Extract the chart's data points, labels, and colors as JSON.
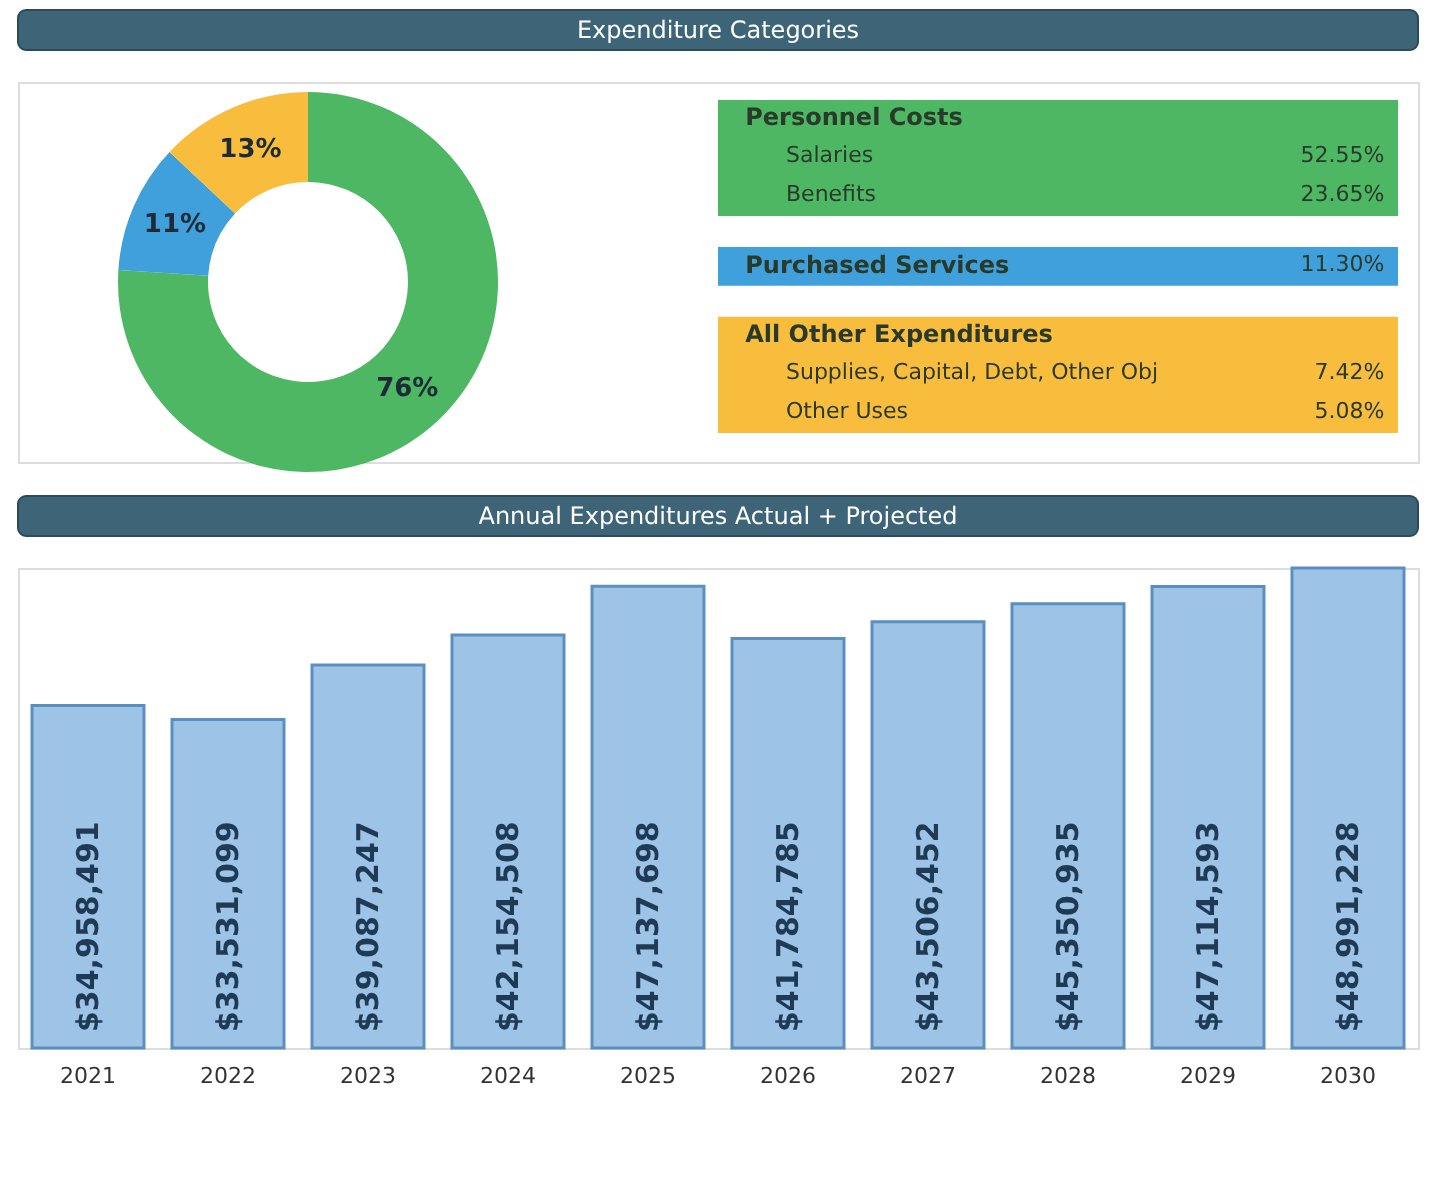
{
  "chart_data": [
    {
      "type": "donut",
      "categories": [
        null,
        null,
        null
      ],
      "values": [
        76,
        11,
        13
      ],
      "colors": [
        "#4db763",
        "#3fa0dc",
        "#f9bd3e"
      ],
      "value_labels": [
        "76%",
        "11%",
        "13%"
      ],
      "legend": false
    },
    {
      "type": "other",
      "title": "Expenditure Categories",
      "categories": [
        "Salaries",
        "Benefits",
        "Purchased Services",
        "Supplies, Capital, Debt, Other Obj",
        "Other Uses"
      ],
      "value_labels": [
        "52.55%",
        "23.65%",
        "11.30%",
        "7.42%",
        "5.08%"
      ],
      "colors": [
        "#4db763",
        "#4db763",
        "#3fa0dc",
        "#f9bd3e",
        "#f9bd3e"
      ],
      "annotations": [
        "Personnel Costs",
        "All Other Expenditures"
      ]
    },
    {
      "type": "bar",
      "title": "Annual Expenditures Actual + Projected",
      "categories": [
        "2021",
        "2022",
        "2023",
        "2024",
        "2025",
        "2026",
        "2027",
        "2028",
        "2029",
        "2030"
      ],
      "values": [
        34958491,
        33531099,
        39087247,
        42154508,
        47137698,
        41784785,
        43506452,
        45350935,
        47114593,
        48991228
      ],
      "value_labels": [
        "$34,958,491",
        "$33,531,099",
        "$39,087,247",
        "$42,154,508",
        "$47,137,698",
        "$41,784,785",
        "$43,506,452",
        "$45,350,935",
        "$47,114,593",
        "$48,991,228"
      ],
      "color": "#9dc3e6"
    }
  ]
}
